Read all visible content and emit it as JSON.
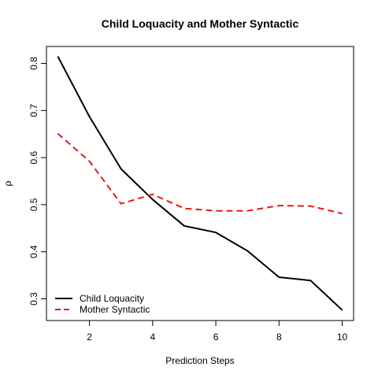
{
  "chart_data": {
    "type": "line",
    "title": "Child Loquacity and Mother Syntactic",
    "xlabel": "Prediction Steps",
    "ylabel": "ρ",
    "x": [
      1,
      2,
      3,
      4,
      5,
      6,
      7,
      8,
      9,
      10
    ],
    "xlim": [
      0.64,
      10.36
    ],
    "ylim": [
      0.254,
      0.836
    ],
    "xticks": [
      2,
      4,
      6,
      8,
      10
    ],
    "yticks": [
      0.3,
      0.4,
      0.5,
      0.6,
      0.7,
      0.8
    ],
    "grid": false,
    "legend_position": "bottom-left",
    "series": [
      {
        "name": "Child Loquacity",
        "color": "#000000",
        "line_style": "solid",
        "values": [
          0.815,
          0.687,
          0.576,
          0.511,
          0.455,
          0.441,
          0.402,
          0.346,
          0.339,
          0.276
        ]
      },
      {
        "name": "Mother Syntactic",
        "color": "#e41a1c",
        "line_style": "dashed",
        "values": [
          0.651,
          0.592,
          0.502,
          0.522,
          0.492,
          0.487,
          0.487,
          0.498,
          0.497,
          0.481
        ]
      }
    ]
  }
}
